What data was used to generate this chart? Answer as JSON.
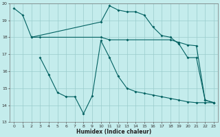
{
  "xlabel": "Humidex (Indice chaleur)",
  "xlim": [
    -0.5,
    23.5
  ],
  "ylim": [
    13,
    20
  ],
  "yticks": [
    13,
    14,
    15,
    16,
    17,
    18,
    19,
    20
  ],
  "xticks": [
    0,
    1,
    2,
    3,
    4,
    5,
    6,
    7,
    8,
    9,
    10,
    11,
    12,
    13,
    14,
    15,
    16,
    17,
    18,
    19,
    20,
    21,
    22,
    23
  ],
  "bg_color": "#c4ecec",
  "grid_color": "#99cccc",
  "line_color": "#006060",
  "line1_x": [
    0,
    1,
    2,
    10,
    11,
    12,
    13,
    14,
    15,
    16,
    17,
    18,
    19,
    20,
    21,
    22,
    23
  ],
  "line1_y": [
    19.7,
    19.3,
    18.0,
    18.9,
    19.85,
    19.6,
    19.5,
    19.5,
    19.3,
    18.6,
    18.1,
    18.0,
    17.6,
    16.8,
    16.8,
    14.3,
    14.15
  ],
  "line2_x": [
    2,
    3,
    10,
    11,
    13,
    18,
    19,
    20,
    21,
    22,
    23
  ],
  "line2_y": [
    18.0,
    18.0,
    18.0,
    17.85,
    17.85,
    17.85,
    17.7,
    17.55,
    17.5,
    14.3,
    14.15
  ],
  "line3_x": [
    3,
    4,
    5,
    6,
    7,
    8,
    9,
    10,
    11,
    12,
    13,
    14,
    15,
    16,
    17,
    18,
    19,
    20,
    21,
    22,
    23
  ],
  "line3_y": [
    16.8,
    15.8,
    14.75,
    14.5,
    14.5,
    13.5,
    14.55,
    17.8,
    16.8,
    15.7,
    15.0,
    14.8,
    14.7,
    14.6,
    14.5,
    14.4,
    14.3,
    14.2,
    14.15,
    14.15,
    14.15
  ]
}
